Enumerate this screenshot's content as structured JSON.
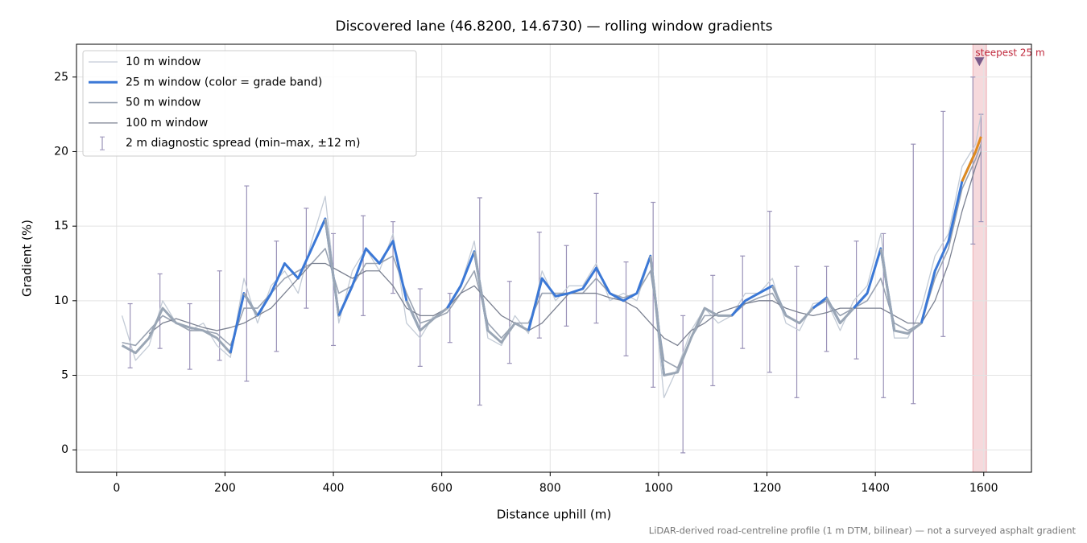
{
  "chart_data": {
    "type": "line",
    "title": "Discovered lane (46.8200, 14.6730) — rolling window gradients",
    "xlabel": "Distance uphill (m)",
    "ylabel": "Gradient (%)",
    "footnote": "LiDAR-derived road-centreline profile (1 m DTM, bilinear) — not a surveyed asphalt gradient",
    "xlim": [
      -74,
      1688
    ],
    "ylim": [
      -1.5,
      27.2
    ],
    "xticks": [
      0,
      200,
      400,
      600,
      800,
      1000,
      1200,
      1400,
      1600
    ],
    "yticks": [
      0,
      5,
      10,
      15,
      20,
      25
    ],
    "grid": true,
    "legend": "upper left",
    "x": [
      10,
      35,
      60,
      85,
      110,
      135,
      160,
      185,
      210,
      235,
      260,
      285,
      310,
      335,
      360,
      385,
      410,
      435,
      460,
      485,
      510,
      535,
      560,
      585,
      610,
      635,
      660,
      685,
      710,
      735,
      760,
      785,
      810,
      835,
      860,
      885,
      910,
      935,
      960,
      985,
      1010,
      1035,
      1060,
      1085,
      1110,
      1135,
      1160,
      1185,
      1210,
      1235,
      1260,
      1285,
      1310,
      1335,
      1360,
      1385,
      1410,
      1435,
      1460,
      1485,
      1510,
      1535,
      1560,
      1585,
      1595
    ],
    "series": [
      {
        "name": "10 m window",
        "color": "#c3cbd6",
        "width": 1.3,
        "values": [
          9,
          6,
          7,
          10,
          8.5,
          8,
          8.5,
          7,
          6.2,
          11.5,
          8.5,
          11,
          12,
          10.5,
          14,
          17,
          8.5,
          12,
          13.5,
          12,
          14.5,
          8.5,
          7.5,
          9,
          9.5,
          11,
          14,
          7.5,
          7,
          9,
          7.8,
          12,
          10,
          11,
          11,
          12.5,
          10,
          10.5,
          10,
          13,
          3.5,
          5.5,
          8,
          9.5,
          8.5,
          9,
          10.5,
          10.5,
          11.5,
          8.5,
          8,
          9.8,
          10,
          8,
          10,
          11,
          14.5,
          7.5,
          7.5,
          9.5,
          13,
          14.5,
          19,
          20.5,
          22.5
        ]
      },
      {
        "name": "25 m window (color = grade band)",
        "color": "#3b78d6",
        "width": 3,
        "band_thresholds": [
          10,
          20
        ],
        "band_colors": [
          "#9aa6b5",
          "#3b78d6",
          "#e08a1e"
        ],
        "values": [
          7,
          6.5,
          7.5,
          9.5,
          8.5,
          8.2,
          8,
          7.5,
          6.5,
          10.5,
          9,
          10.5,
          12.5,
          11.5,
          13.5,
          15.5,
          9,
          11,
          13.5,
          12.5,
          14,
          10,
          8,
          8.8,
          9.5,
          11,
          13.3,
          8,
          7.2,
          8.5,
          8,
          11.5,
          10.3,
          10.5,
          10.8,
          12.2,
          10.5,
          10,
          10.5,
          13,
          5,
          5.2,
          7.5,
          9.5,
          9,
          9,
          10,
          10.5,
          11,
          9,
          8.5,
          9.5,
          10.2,
          8.5,
          9.5,
          10.5,
          13.5,
          8,
          7.8,
          8.5,
          12,
          14,
          18,
          20,
          21
        ]
      },
      {
        "name": "50 m window",
        "color": "#9aa3b2",
        "width": 1.6,
        "values": [
          7.2,
          7,
          8,
          9,
          8.5,
          8,
          8,
          7.8,
          7,
          9.5,
          9.5,
          10.5,
          11.5,
          12,
          12.5,
          13.5,
          10.5,
          11,
          12.5,
          12.5,
          13,
          10.5,
          8.5,
          8.8,
          9.2,
          10.5,
          12,
          8.5,
          7.5,
          8.5,
          8.5,
          10.5,
          10.5,
          10.5,
          10.5,
          11.5,
          10.5,
          10.2,
          10.5,
          12,
          6,
          5.5,
          7.5,
          9,
          9,
          9,
          9.8,
          10.2,
          10.5,
          9,
          8.5,
          9.5,
          10,
          9,
          9.5,
          10,
          11.5,
          8.5,
          8,
          8.5,
          11.5,
          13.5,
          17.5,
          19.5,
          20.5
        ]
      },
      {
        "name": "100 m window",
        "color": "#7b8191",
        "width": 1.3,
        "values": [
          null,
          null,
          7.8,
          8.5,
          8.8,
          8.5,
          8.2,
          8,
          8.2,
          8.5,
          9,
          9.5,
          10.5,
          11.5,
          12.5,
          12.5,
          12,
          11.5,
          12,
          12,
          11,
          9.5,
          9,
          9,
          9.5,
          10.5,
          11,
          10,
          9,
          8.5,
          8,
          8.5,
          9.5,
          10.5,
          10.5,
          10.5,
          10.2,
          10,
          9.5,
          8.5,
          7.5,
          7,
          8,
          8.5,
          9.2,
          9.5,
          9.8,
          10,
          10,
          9.5,
          9.2,
          9,
          9.2,
          9.5,
          9.5,
          9.5,
          9.5,
          9,
          8.5,
          8.5,
          10,
          12.5,
          16,
          19,
          20
        ]
      }
    ],
    "spread": {
      "name": "2 m diagnostic spread (min–max, ±12 m)",
      "color": "#9a92b8",
      "x": [
        25,
        80,
        135,
        190,
        240,
        295,
        350,
        400,
        455,
        510,
        560,
        615,
        670,
        725,
        780,
        830,
        885,
        940,
        990,
        1045,
        1100,
        1155,
        1205,
        1255,
        1310,
        1365,
        1415,
        1470,
        1525,
        1580,
        1595
      ],
      "low": [
        5.5,
        6.8,
        5.4,
        6,
        4.6,
        6.6,
        9.5,
        7,
        9,
        10.5,
        5.6,
        7.2,
        3,
        5.8,
        7.5,
        8.3,
        8.5,
        6.3,
        4.2,
        -0.2,
        4.3,
        6.8,
        5.2,
        3.5,
        6.6,
        6.1,
        3.5,
        3.1,
        7.6,
        13.8,
        15.3
      ],
      "high": [
        9.8,
        11.8,
        9.8,
        12,
        17.7,
        14,
        16.2,
        14.5,
        15.7,
        15.3,
        10.8,
        10.5,
        16.9,
        11.3,
        14.6,
        13.7,
        17.2,
        12.6,
        16.6,
        9,
        11.7,
        13,
        16,
        12.3,
        12.3,
        14,
        14.5,
        20.5,
        22.7,
        25,
        22.5
      ]
    },
    "highlight": {
      "xmin": 1580,
      "xmax": 1605,
      "color": "#e8a0a8"
    },
    "annotation": {
      "text": "steepest 25 m",
      "x": 1592,
      "y": 26,
      "color": "#c0283c",
      "marker_color": "#7a5a8a"
    }
  }
}
